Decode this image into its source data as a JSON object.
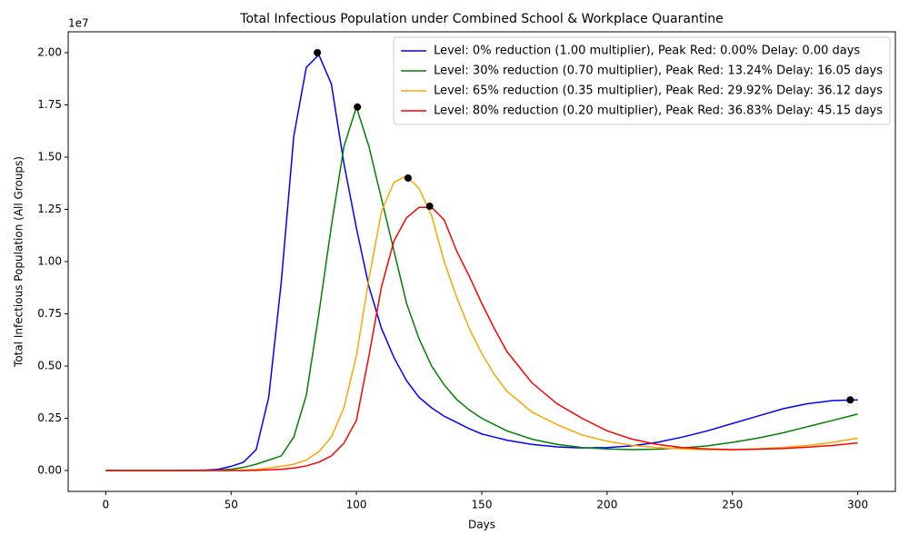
{
  "chart_data": {
    "type": "line",
    "title": "Total Infectious Population under Combined School & Workplace Quarantine",
    "x_label": "Days",
    "y_label": "Total Infectious Population (All Groups)",
    "y_offset_label": "1e7",
    "xlim": [
      -15,
      315
    ],
    "ylim": [
      -0.1,
      2.1
    ],
    "xticks": [
      0,
      50,
      100,
      150,
      200,
      250,
      300
    ],
    "yticks": [
      {
        "value": 0,
        "label": "0.00"
      },
      0.25,
      {
        "value": 0.5,
        "label": "0.50"
      },
      0.75,
      {
        "value": 1,
        "label": "1.00"
      },
      1.25,
      {
        "value": 1.5,
        "label": "1.50"
      },
      1.75,
      {
        "value": 2,
        "label": "2.00"
      }
    ],
    "grid": false,
    "legend": "upper right",
    "x": [
      0,
      10,
      20,
      30,
      40,
      45,
      50,
      55,
      60,
      65,
      70,
      75,
      80,
      85,
      90,
      95,
      100,
      105,
      110,
      115,
      120,
      125,
      130,
      135,
      140,
      145,
      150,
      155,
      160,
      170,
      180,
      190,
      200,
      210,
      220,
      230,
      240,
      250,
      260,
      270,
      280,
      290,
      300
    ],
    "series": [
      {
        "name": "Level: 0% reduction (1.00 multiplier), Peak Red: 0.00% Delay: 0.00 days",
        "color": "#0000ff",
        "values": [
          0,
          0,
          0,
          0,
          0.002,
          0.006,
          0.02,
          0.04,
          0.1,
          0.35,
          0.9,
          1.6,
          1.93,
          1.99,
          1.85,
          1.47,
          1.16,
          0.88,
          0.68,
          0.54,
          0.43,
          0.35,
          0.3,
          0.26,
          0.23,
          0.2,
          0.175,
          0.16,
          0.145,
          0.125,
          0.113,
          0.108,
          0.11,
          0.118,
          0.135,
          0.16,
          0.19,
          0.225,
          0.26,
          0.295,
          0.32,
          0.335,
          0.338
        ]
      },
      {
        "name": "Level: 30% reduction (0.70 multiplier), Peak Red: 13.24% Delay: 16.05 days",
        "color": "#008000",
        "values": [
          0,
          0,
          0,
          0,
          0,
          0.002,
          0.006,
          0.015,
          0.03,
          0.05,
          0.07,
          0.16,
          0.36,
          0.75,
          1.17,
          1.55,
          1.74,
          1.55,
          1.3,
          1.05,
          0.8,
          0.63,
          0.5,
          0.41,
          0.34,
          0.29,
          0.25,
          0.22,
          0.19,
          0.15,
          0.125,
          0.11,
          0.103,
          0.1,
          0.102,
          0.108,
          0.118,
          0.135,
          0.155,
          0.18,
          0.21,
          0.24,
          0.27
        ]
      },
      {
        "name": "Level: 65% reduction (0.35 multiplier), Peak Red: 29.92% Delay: 36.12 days",
        "color": "#ffa500",
        "values": [
          0,
          0,
          0,
          0,
          0,
          0,
          0,
          0.002,
          0.005,
          0.012,
          0.02,
          0.03,
          0.05,
          0.09,
          0.16,
          0.3,
          0.55,
          0.92,
          1.24,
          1.38,
          1.41,
          1.35,
          1.22,
          1.0,
          0.83,
          0.68,
          0.56,
          0.46,
          0.38,
          0.28,
          0.22,
          0.17,
          0.14,
          0.12,
          0.11,
          0.103,
          0.1,
          0.1,
          0.104,
          0.11,
          0.12,
          0.135,
          0.155
        ]
      },
      {
        "name": "Level: 80% reduction (0.20 multiplier), Peak Red: 36.83% Delay: 45.15 days",
        "color": "#ff0000",
        "values": [
          0,
          0,
          0,
          0,
          0,
          0,
          0,
          0,
          0.001,
          0.003,
          0.006,
          0.012,
          0.022,
          0.04,
          0.07,
          0.13,
          0.24,
          0.55,
          0.88,
          1.1,
          1.21,
          1.26,
          1.26,
          1.2,
          1.05,
          0.93,
          0.8,
          0.68,
          0.57,
          0.42,
          0.32,
          0.25,
          0.19,
          0.15,
          0.125,
          0.11,
          0.103,
          0.1,
          0.102,
          0.105,
          0.112,
          0.12,
          0.132
        ]
      }
    ],
    "peaks": {
      "color": "#000000",
      "x": [
        84.4,
        100.4,
        120.6,
        129.2,
        297
      ],
      "y": [
        2.0,
        1.74,
        1.4,
        1.265,
        0.338
      ]
    }
  }
}
